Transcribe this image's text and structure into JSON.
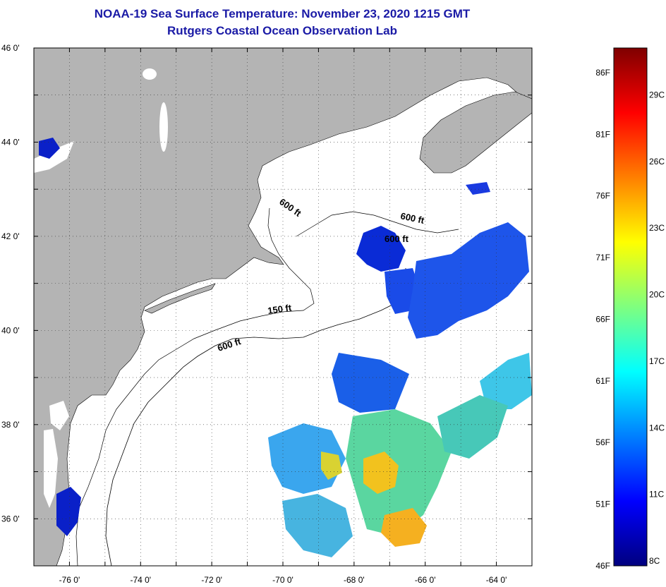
{
  "title": "NOAA-19 Sea Surface Temperature:  November 23, 2020 1215 GMT",
  "subtitle": "Rutgers Coastal Ocean Observation Lab",
  "map": {
    "lon_range": [
      -77,
      -63
    ],
    "lat_range": [
      35,
      46
    ],
    "lat_ticks": [
      "46 0'",
      "44 0'",
      "42 0'",
      "40 0'",
      "38 0'",
      "36 0'"
    ],
    "lat_tick_values": [
      46,
      44,
      42,
      40,
      38,
      36
    ],
    "lon_ticks": [
      "-76 0'",
      "-74 0'",
      "-72 0'",
      "-70 0'",
      "-68 0'",
      "-66 0'",
      "-64 0'"
    ],
    "lon_tick_values": [
      -76,
      -74,
      -72,
      -70,
      -68,
      -66,
      -64
    ],
    "grid": "dotted",
    "land_color": "#b4b4b4",
    "water_color": "#ffffff",
    "contour_labels": [
      "600 ft",
      "600 ft",
      "600 ft",
      "150 ft",
      "600 ft"
    ]
  },
  "colorbar": {
    "placement": "right",
    "fahrenheit_labels": [
      "86F",
      "81F",
      "76F",
      "71F",
      "66F",
      "61F",
      "56F",
      "51F",
      "46F"
    ],
    "fahrenheit_values": [
      86,
      81,
      76,
      71,
      66,
      61,
      56,
      51,
      46
    ],
    "celsius_labels": [
      "29C",
      "26C",
      "23C",
      "20C",
      "17C",
      "14C",
      "11C",
      "8C"
    ],
    "celsius_values": [
      29,
      26,
      23,
      20,
      17,
      14,
      11,
      8
    ],
    "min_f": 46,
    "max_f": 88,
    "colormap": [
      "#00007f",
      "#0000ff",
      "#007fff",
      "#00ffff",
      "#7fff7f",
      "#ffff00",
      "#ff7f00",
      "#ff0000",
      "#7f0000"
    ]
  }
}
